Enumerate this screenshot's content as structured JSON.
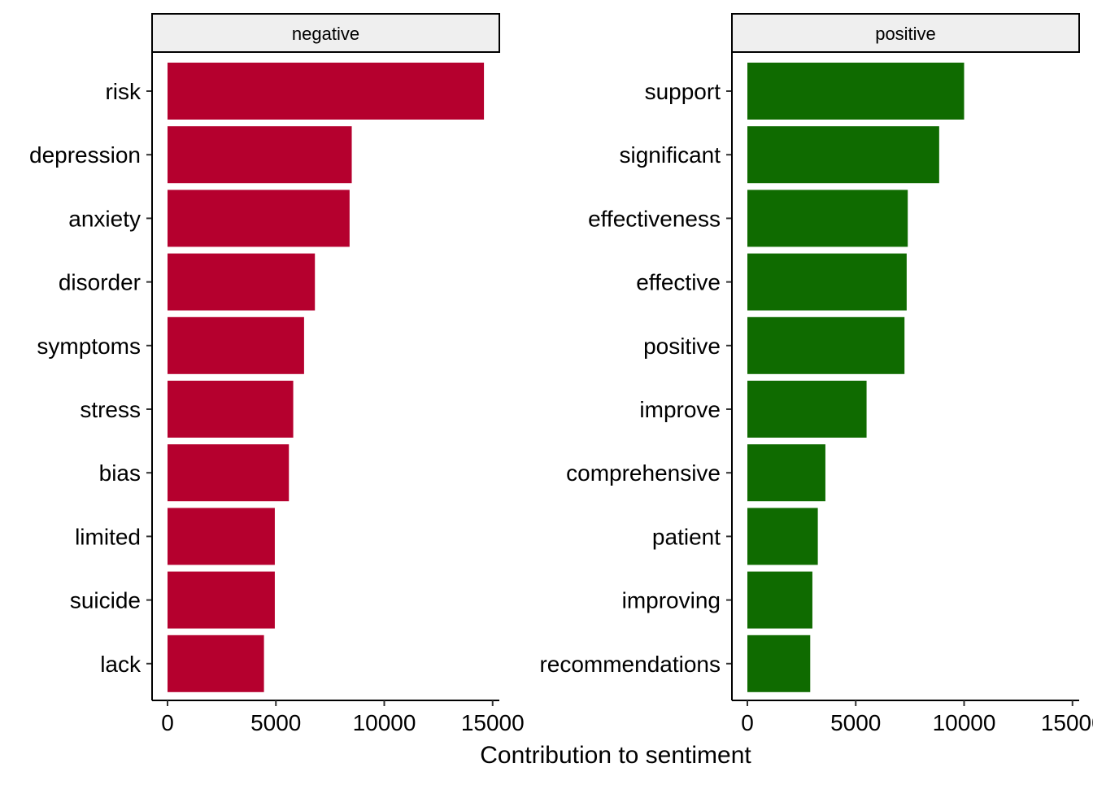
{
  "chart_data": {
    "type": "bar",
    "orientation": "horizontal",
    "xlabel": "Contribution to sentiment",
    "xlim": [
      0,
      15000
    ],
    "x_ticks": [
      "0",
      "5000",
      "10000",
      "15000"
    ],
    "grid": false,
    "facets": [
      {
        "strip": "negative",
        "color": "#B5002E",
        "categories": [
          "risk",
          "depression",
          "anxiety",
          "disorder",
          "symptoms",
          "stress",
          "bias",
          "limited",
          "suicide",
          "lack"
        ],
        "values": [
          14600,
          8500,
          8400,
          6800,
          6300,
          5800,
          5600,
          4950,
          4950,
          4450
        ]
      },
      {
        "strip": "positive",
        "color": "#0F6B00",
        "categories": [
          "support",
          "significant",
          "effectiveness",
          "effective",
          "positive",
          "improve",
          "comprehensive",
          "patient",
          "improving",
          "recommendations"
        ],
        "values": [
          10000,
          8850,
          7400,
          7350,
          7250,
          5500,
          3600,
          3250,
          3000,
          2900
        ]
      }
    ]
  }
}
